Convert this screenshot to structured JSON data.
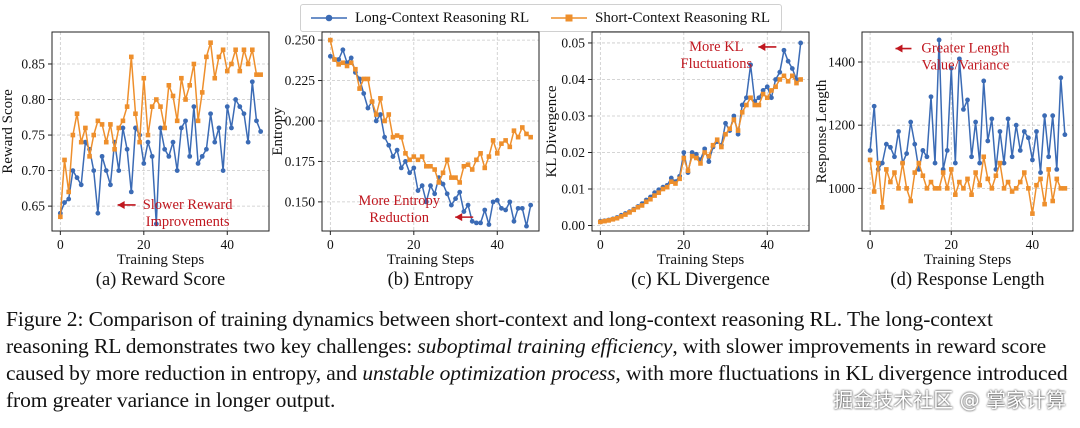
{
  "colors": {
    "long": "#3b6bb5",
    "short": "#ee8f2c",
    "annotation": "#c0171f",
    "grid": "#c8c8c8"
  },
  "legend": {
    "long_label": "Long-Context Reasoning RL",
    "short_label": "Short-Context Reasoning RL"
  },
  "chart_data": [
    {
      "type": "line",
      "id": "reward",
      "ylabel": "Reward Score",
      "xlabel": "Training Steps",
      "caption": "(a) Reward Score",
      "xlim": [
        -2,
        50
      ],
      "ylim": [
        0.615,
        0.895
      ],
      "xticks": [
        0,
        20,
        40
      ],
      "xtick_labels": [
        "0",
        "20",
        "40"
      ],
      "yticks": [
        0.65,
        0.7,
        0.75,
        0.8,
        0.85
      ],
      "ytick_labels": [
        "0.65",
        "0.70",
        "0.75",
        "0.80",
        "0.85"
      ],
      "annotation": {
        "lines": [
          "Slower Reward",
          "Improvements"
        ],
        "x": 30.5,
        "y": 0.646
      },
      "series": [
        {
          "name": "Long-Context Reasoning RL",
          "x": [
            0,
            1,
            2,
            3,
            4,
            5,
            6,
            7,
            8,
            9,
            10,
            11,
            12,
            13,
            14,
            15,
            16,
            17,
            18,
            19,
            20,
            21,
            22,
            23,
            24,
            25,
            26,
            27,
            28,
            29,
            30,
            31,
            32,
            33,
            34,
            35,
            36,
            37,
            38,
            39,
            40,
            41,
            42,
            43,
            44,
            45,
            46,
            47,
            48
          ],
          "y": [
            0.64,
            0.655,
            0.66,
            0.7,
            0.69,
            0.68,
            0.74,
            0.73,
            0.7,
            0.64,
            0.72,
            0.7,
            0.68,
            0.74,
            0.7,
            0.76,
            0.73,
            0.67,
            0.76,
            0.75,
            0.71,
            0.74,
            0.72,
            0.625,
            0.76,
            0.73,
            0.72,
            0.74,
            0.7,
            0.76,
            0.77,
            0.72,
            0.79,
            0.71,
            0.72,
            0.73,
            0.78,
            0.74,
            0.76,
            0.7,
            0.79,
            0.76,
            0.8,
            0.79,
            0.78,
            0.74,
            0.825,
            0.77,
            0.755
          ]
        },
        {
          "name": "Short-Context Reasoning RL",
          "x": [
            0,
            1,
            2,
            3,
            4,
            5,
            6,
            7,
            8,
            9,
            10,
            11,
            12,
            13,
            14,
            15,
            16,
            17,
            18,
            19,
            20,
            21,
            22,
            23,
            24,
            25,
            26,
            27,
            28,
            29,
            30,
            31,
            32,
            33,
            34,
            35,
            36,
            37,
            38,
            39,
            40,
            41,
            42,
            43,
            44,
            45,
            46,
            47,
            48
          ],
          "y": [
            0.635,
            0.715,
            0.67,
            0.75,
            0.78,
            0.74,
            0.76,
            0.72,
            0.75,
            0.77,
            0.765,
            0.74,
            0.765,
            0.73,
            0.76,
            0.77,
            0.79,
            0.86,
            0.78,
            0.74,
            0.83,
            0.75,
            0.79,
            0.8,
            0.79,
            0.76,
            0.82,
            0.805,
            0.77,
            0.83,
            0.8,
            0.82,
            0.85,
            0.77,
            0.81,
            0.86,
            0.88,
            0.83,
            0.86,
            0.87,
            0.84,
            0.85,
            0.87,
            0.84,
            0.87,
            0.85,
            0.87,
            0.835,
            0.835
          ]
        }
      ]
    },
    {
      "type": "line",
      "id": "entropy",
      "ylabel": "Entropy",
      "xlabel": "Training Steps",
      "caption": "(b) Entropy",
      "xlim": [
        -2,
        50
      ],
      "ylim": [
        0.132,
        0.255
      ],
      "xticks": [
        0,
        20,
        40
      ],
      "xtick_labels": [
        "0",
        "20",
        "40"
      ],
      "yticks": [
        0.15,
        0.175,
        0.2,
        0.225,
        0.25
      ],
      "ytick_labels": [
        "0.150",
        "0.175",
        "0.200",
        "0.225",
        "0.250"
      ],
      "annotation": {
        "lines": [
          "More Entropy",
          "Reduction"
        ],
        "x": 16.5,
        "y": 0.148
      },
      "series": [
        {
          "name": "Long-Context Reasoning RL",
          "x": [
            0,
            1,
            2,
            3,
            4,
            5,
            6,
            7,
            8,
            9,
            10,
            11,
            12,
            13,
            14,
            15,
            16,
            17,
            18,
            19,
            20,
            21,
            22,
            23,
            24,
            25,
            26,
            27,
            28,
            29,
            30,
            31,
            32,
            33,
            34,
            35,
            36,
            37,
            38,
            39,
            40,
            41,
            42,
            43,
            44,
            45,
            46,
            47,
            48
          ],
          "y": [
            0.24,
            0.238,
            0.238,
            0.244,
            0.236,
            0.239,
            0.23,
            0.226,
            0.217,
            0.208,
            0.212,
            0.2,
            0.204,
            0.19,
            0.185,
            0.178,
            0.182,
            0.171,
            0.175,
            0.168,
            0.171,
            0.157,
            0.16,
            0.15,
            0.16,
            0.155,
            0.165,
            0.161,
            0.155,
            0.148,
            0.152,
            0.156,
            0.144,
            0.148,
            0.138,
            0.137,
            0.137,
            0.145,
            0.136,
            0.15,
            0.151,
            0.146,
            0.145,
            0.15,
            0.138,
            0.146,
            0.146,
            0.135,
            0.148
          ]
        },
        {
          "name": "Short-Context Reasoning RL",
          "x": [
            0,
            1,
            2,
            3,
            4,
            5,
            6,
            7,
            8,
            9,
            10,
            11,
            12,
            13,
            14,
            15,
            16,
            17,
            18,
            19,
            20,
            21,
            22,
            23,
            24,
            25,
            26,
            27,
            28,
            29,
            30,
            31,
            32,
            33,
            34,
            35,
            36,
            37,
            38,
            39,
            40,
            41,
            42,
            43,
            44,
            45,
            46,
            47,
            48
          ],
          "y": [
            0.25,
            0.238,
            0.235,
            0.236,
            0.234,
            0.236,
            0.232,
            0.22,
            0.226,
            0.226,
            0.212,
            0.204,
            0.214,
            0.2,
            0.204,
            0.19,
            0.191,
            0.19,
            0.18,
            0.176,
            0.178,
            0.176,
            0.178,
            0.172,
            0.172,
            0.17,
            0.162,
            0.168,
            0.176,
            0.165,
            0.165,
            0.162,
            0.172,
            0.173,
            0.17,
            0.176,
            0.18,
            0.171,
            0.178,
            0.188,
            0.18,
            0.186,
            0.188,
            0.184,
            0.194,
            0.19,
            0.196,
            0.192,
            0.19
          ]
        }
      ]
    },
    {
      "type": "line",
      "id": "kl",
      "ylabel": "KL Divergence",
      "xlabel": "Training Steps",
      "caption": "(c) KL Divergence",
      "xlim": [
        -2,
        50
      ],
      "ylim": [
        -0.0015,
        0.053
      ],
      "xticks": [
        0,
        20,
        40
      ],
      "xtick_labels": [
        "0",
        "20",
        "40"
      ],
      "yticks": [
        0.0,
        0.01,
        0.02,
        0.03,
        0.04,
        0.05
      ],
      "ytick_labels": [
        "0.00",
        "0.01",
        "0.02",
        "0.03",
        "0.04",
        "0.05"
      ],
      "annotation": {
        "lines": [
          "More KL",
          "Fluctuations"
        ],
        "x": 27.8,
        "y": 0.0478
      },
      "series": [
        {
          "name": "Long-Context Reasoning RL",
          "x": [
            0,
            1,
            2,
            3,
            4,
            5,
            6,
            7,
            8,
            9,
            10,
            11,
            12,
            13,
            14,
            15,
            16,
            17,
            18,
            19,
            20,
            21,
            22,
            23,
            24,
            25,
            26,
            27,
            28,
            29,
            30,
            31,
            32,
            33,
            34,
            35,
            36,
            37,
            38,
            39,
            40,
            41,
            42,
            43,
            44,
            45,
            46,
            47,
            48
          ],
          "y": [
            0.0012,
            0.0013,
            0.0015,
            0.0018,
            0.0022,
            0.0028,
            0.0033,
            0.0038,
            0.0045,
            0.0052,
            0.006,
            0.007,
            0.0078,
            0.009,
            0.0098,
            0.0105,
            0.011,
            0.013,
            0.012,
            0.0135,
            0.02,
            0.0145,
            0.02,
            0.0195,
            0.018,
            0.021,
            0.0175,
            0.0215,
            0.023,
            0.022,
            0.028,
            0.026,
            0.03,
            0.025,
            0.033,
            0.035,
            0.044,
            0.034,
            0.035,
            0.037,
            0.038,
            0.035,
            0.04,
            0.042,
            0.048,
            0.045,
            0.043,
            0.04,
            0.05
          ]
        },
        {
          "name": "Short-Context Reasoning RL",
          "x": [
            0,
            1,
            2,
            3,
            4,
            5,
            6,
            7,
            8,
            9,
            10,
            11,
            12,
            13,
            14,
            15,
            16,
            17,
            18,
            19,
            20,
            21,
            22,
            23,
            24,
            25,
            26,
            27,
            28,
            29,
            30,
            31,
            32,
            33,
            34,
            35,
            36,
            37,
            38,
            39,
            40,
            41,
            42,
            43,
            44,
            45,
            46,
            47,
            48
          ],
          "y": [
            0.001,
            0.0012,
            0.0014,
            0.0017,
            0.002,
            0.0025,
            0.003,
            0.0036,
            0.0043,
            0.005,
            0.0055,
            0.0065,
            0.0072,
            0.0082,
            0.009,
            0.01,
            0.0105,
            0.012,
            0.0115,
            0.0128,
            0.0185,
            0.015,
            0.019,
            0.0185,
            0.017,
            0.02,
            0.019,
            0.022,
            0.0235,
            0.0215,
            0.025,
            0.0265,
            0.029,
            0.026,
            0.031,
            0.033,
            0.035,
            0.033,
            0.033,
            0.036,
            0.035,
            0.037,
            0.038,
            0.04,
            0.041,
            0.0395,
            0.041,
            0.039,
            0.04
          ]
        }
      ]
    },
    {
      "type": "line",
      "id": "length",
      "ylabel": "Response Length",
      "xlabel": "Training Steps",
      "caption": "(d) Response Length",
      "xlim": [
        -2,
        50
      ],
      "ylim": [
        865,
        1495
      ],
      "xticks": [
        0,
        20,
        40
      ],
      "xtick_labels": [
        "0",
        "20",
        "40"
      ],
      "yticks": [
        1000,
        1200,
        1400
      ],
      "ytick_labels": [
        "1000",
        "1200",
        "1400"
      ],
      "annotation": {
        "lines": [
          "Greater Length",
          "Value/Variance"
        ],
        "x": 23.5,
        "y": 1430
      },
      "series": [
        {
          "name": "Long-Context Reasoning RL",
          "x": [
            0,
            1,
            2,
            3,
            4,
            5,
            6,
            7,
            8,
            9,
            10,
            11,
            12,
            13,
            14,
            15,
            16,
            17,
            18,
            19,
            20,
            21,
            22,
            23,
            24,
            25,
            26,
            27,
            28,
            29,
            30,
            31,
            32,
            33,
            34,
            35,
            36,
            37,
            38,
            39,
            40,
            41,
            42,
            43,
            44,
            45,
            46,
            47,
            48
          ],
          "y": [
            1120,
            1260,
            1060,
            1080,
            1140,
            1130,
            1100,
            1180,
            1080,
            1110,
            1210,
            1140,
            1060,
            1120,
            1100,
            1290,
            1080,
            1470,
            1060,
            1120,
            1380,
            1080,
            1410,
            1250,
            1280,
            1100,
            1210,
            1080,
            1340,
            1150,
            1220,
            1060,
            1180,
            1080,
            1220,
            1100,
            1200,
            1120,
            1180,
            1160,
            1090,
            1180,
            1050,
            1230,
            1100,
            1230,
            1060,
            1350,
            1170
          ]
        },
        {
          "name": "Short-Context Reasoning RL",
          "x": [
            0,
            1,
            2,
            3,
            4,
            5,
            6,
            7,
            8,
            9,
            10,
            11,
            12,
            13,
            14,
            15,
            16,
            17,
            18,
            19,
            20,
            21,
            22,
            23,
            24,
            25,
            26,
            27,
            28,
            29,
            30,
            31,
            32,
            33,
            34,
            35,
            36,
            37,
            38,
            39,
            40,
            41,
            42,
            43,
            44,
            45,
            46,
            47,
            48
          ],
          "y": [
            1090,
            990,
            1080,
            940,
            1060,
            1020,
            1050,
            1000,
            1080,
            1000,
            960,
            1050,
            1080,
            1040,
            1000,
            1020,
            1000,
            1000,
            1050,
            1000,
            1060,
            980,
            1020,
            1000,
            1030,
            980,
            1050,
            1010,
            1100,
            1030,
            1000,
            1040,
            1080,
            1000,
            1020,
            990,
            1000,
            1020,
            1050,
            1000,
            920,
            1010,
            1030,
            950,
            1060,
            960,
            1030,
            1000,
            1000
          ]
        }
      ]
    }
  ],
  "caption": {
    "prefix": "Figure 2: Comparison of training dynamics between short-context and long-context reasoning RL. The long-context reasoning RL demonstrates two key challenges: ",
    "em1": "suboptimal training efficiency",
    "mid": ", with slower improvements in reward score caused by more reduction in entropy, and ",
    "em2": "unstable optimization process",
    "suffix": ", with more fluctuations in KL divergence introduced from greater variance in longer output."
  },
  "watermark": "掘金技术社区 @ 掌家计算"
}
